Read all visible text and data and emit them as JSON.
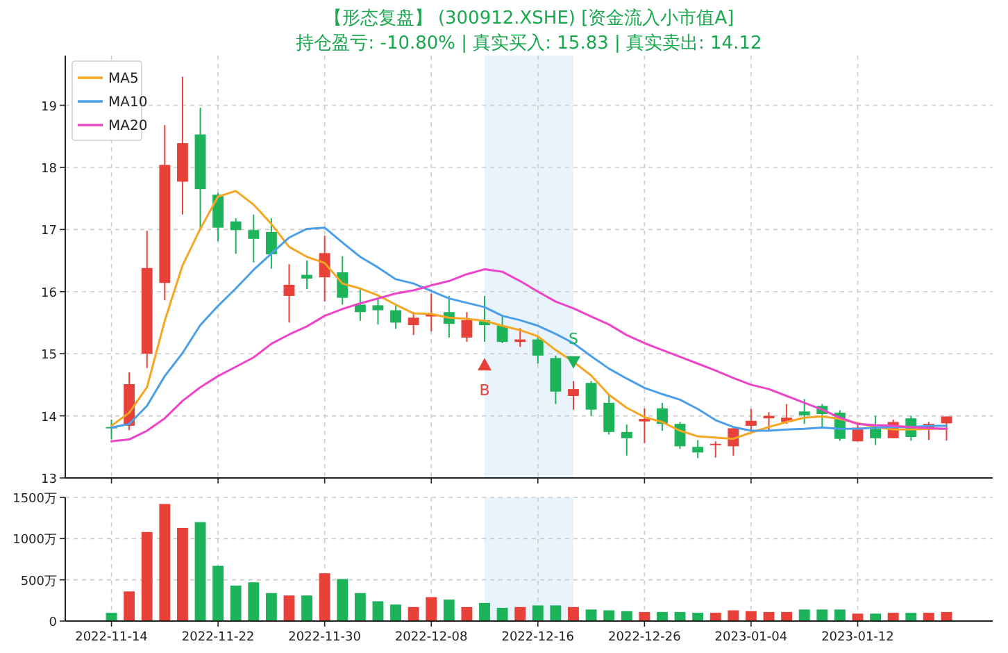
{
  "chart_data": [
    {
      "type": "candlestick",
      "title": "【形态复盘】 (300912.XSHE) [资金流入小市值A]",
      "subtitle": "持仓盈亏: -10.80% | 真实买入: 15.83 | 真实卖出: 14.12",
      "categories": [
        null,
        null,
        null,
        null,
        null,
        null,
        null,
        null,
        null,
        null,
        null,
        null,
        null,
        null,
        null,
        null,
        null,
        null,
        null,
        null,
        null,
        null,
        null,
        null,
        null,
        null,
        null,
        null,
        null,
        null,
        null,
        null,
        null,
        null,
        null,
        null,
        null,
        null,
        null,
        null,
        null,
        null,
        null,
        null,
        null,
        null,
        null,
        null
      ],
      "ohlc": [
        [
          13.82,
          13.94,
          13.62,
          13.8
        ],
        [
          13.84,
          14.7,
          13.77,
          14.51
        ],
        [
          15.0,
          16.98,
          14.77,
          16.38
        ],
        [
          16.14,
          18.68,
          15.86,
          18.04
        ],
        [
          17.77,
          19.46,
          17.24,
          18.39
        ],
        [
          18.53,
          18.96,
          17.01,
          17.65
        ],
        [
          17.56,
          17.59,
          16.81,
          17.03
        ],
        [
          17.13,
          17.18,
          16.61,
          16.99
        ],
        [
          16.99,
          17.24,
          16.47,
          16.85
        ],
        [
          16.96,
          17.18,
          16.37,
          16.6
        ],
        [
          15.93,
          16.44,
          15.5,
          16.11
        ],
        [
          16.27,
          16.5,
          16.04,
          16.21
        ],
        [
          16.23,
          16.9,
          15.84,
          16.62
        ],
        [
          16.31,
          16.57,
          15.79,
          15.9
        ],
        [
          15.79,
          16.05,
          15.53,
          15.67
        ],
        [
          15.78,
          15.9,
          15.47,
          15.7
        ],
        [
          15.7,
          15.79,
          15.4,
          15.5
        ],
        [
          15.46,
          15.67,
          15.3,
          15.58
        ],
        [
          15.6,
          15.97,
          15.36,
          15.64
        ],
        [
          15.67,
          15.93,
          15.26,
          15.48
        ],
        [
          15.26,
          15.67,
          15.19,
          15.54
        ],
        [
          15.54,
          15.93,
          15.19,
          15.46
        ],
        [
          15.45,
          15.6,
          15.17,
          15.19
        ],
        [
          15.19,
          15.41,
          15.11,
          15.23
        ],
        [
          15.23,
          15.28,
          14.84,
          14.97
        ],
        [
          14.93,
          14.97,
          14.19,
          14.39
        ],
        [
          14.32,
          14.56,
          14.1,
          14.43
        ],
        [
          14.53,
          14.56,
          14.0,
          14.1
        ],
        [
          14.21,
          14.34,
          13.7,
          13.74
        ],
        [
          13.74,
          13.86,
          13.36,
          13.64
        ],
        [
          13.91,
          14.12,
          13.56,
          13.95
        ],
        [
          14.12,
          14.21,
          13.76,
          13.87
        ],
        [
          13.87,
          13.9,
          13.47,
          13.51
        ],
        [
          13.5,
          13.61,
          13.32,
          13.41
        ],
        [
          13.53,
          13.59,
          13.33,
          13.55
        ],
        [
          13.51,
          13.8,
          13.36,
          13.8
        ],
        [
          13.84,
          14.11,
          13.76,
          13.92
        ],
        [
          13.96,
          14.06,
          13.76,
          14.0
        ],
        [
          13.9,
          14.19,
          13.87,
          13.97
        ],
        [
          14.07,
          14.27,
          13.87,
          14.01
        ],
        [
          14.16,
          14.19,
          13.81,
          14.03
        ],
        [
          14.05,
          14.09,
          13.6,
          13.63
        ],
        [
          13.59,
          13.9,
          13.59,
          13.81
        ],
        [
          13.79,
          14.0,
          13.53,
          13.64
        ],
        [
          13.64,
          13.94,
          13.64,
          13.9
        ],
        [
          13.96,
          14.0,
          13.6,
          13.66
        ],
        [
          13.79,
          13.9,
          13.61,
          13.87
        ],
        [
          13.88,
          13.99,
          13.6,
          13.99
        ]
      ],
      "colors": [
        "#1db35a",
        "#e8413a",
        "#e8413a",
        "#e8413a",
        "#e8413a",
        "#1db35a",
        "#1db35a",
        "#1db35a",
        "#1db35a",
        "#1db35a",
        "#e8413a",
        "#1db35a",
        "#e8413a",
        "#1db35a",
        "#1db35a",
        "#1db35a",
        "#1db35a",
        "#e8413a",
        "#e8413a",
        "#1db35a",
        "#e8413a",
        "#1db35a",
        "#1db35a",
        "#e8413a",
        "#1db35a",
        "#1db35a",
        "#e8413a",
        "#1db35a",
        "#1db35a",
        "#1db35a",
        "#e8413a",
        "#1db35a",
        "#1db35a",
        "#1db35a",
        "#e8413a",
        "#e8413a",
        "#e8413a",
        "#e8413a",
        "#e8413a",
        "#1db35a",
        "#1db35a",
        "#1db35a",
        "#e8413a",
        "#1db35a",
        "#e8413a",
        "#1db35a",
        "#e8413a",
        "#e8413a"
      ],
      "series": [
        {
          "type": "line",
          "name": "MA5",
          "color": "#f5a623",
          "values": [
            13.84,
            14.05,
            14.46,
            15.53,
            16.42,
            17.01,
            17.53,
            17.62,
            17.4,
            17.09,
            16.72,
            16.56,
            16.46,
            16.13,
            16.05,
            15.94,
            15.79,
            15.65,
            15.64,
            15.58,
            15.56,
            15.53,
            15.45,
            15.38,
            15.28,
            15.06,
            14.87,
            14.65,
            14.34,
            14.13,
            13.98,
            13.9,
            13.76,
            13.67,
            13.65,
            13.63,
            13.73,
            13.82,
            13.9,
            13.97,
            13.99,
            13.95,
            13.88,
            13.82,
            13.78,
            13.78,
            13.79,
            13.79
          ]
        },
        {
          "type": "line",
          "name": "MA10",
          "color": "#4a9fe8",
          "values": [
            13.81,
            13.87,
            14.16,
            14.64,
            15.01,
            15.46,
            15.77,
            16.05,
            16.35,
            16.61,
            16.87,
            17.01,
            17.03,
            16.79,
            16.56,
            16.39,
            16.2,
            16.13,
            16.01,
            15.89,
            15.82,
            15.75,
            15.61,
            15.54,
            15.45,
            15.32,
            15.17,
            14.96,
            14.76,
            14.6,
            14.45,
            14.35,
            14.26,
            14.11,
            13.93,
            13.82,
            13.76,
            13.76,
            13.78,
            13.79,
            13.81,
            13.79,
            13.79,
            13.81,
            13.82,
            13.82,
            13.84,
            13.84
          ]
        },
        {
          "type": "line",
          "name": "MA20",
          "color": "#ee44c8",
          "values": [
            13.59,
            13.62,
            13.76,
            13.96,
            14.24,
            14.46,
            14.64,
            14.79,
            14.94,
            15.16,
            15.31,
            15.44,
            15.61,
            15.72,
            15.81,
            15.89,
            15.97,
            16.02,
            16.1,
            16.17,
            16.28,
            16.36,
            16.32,
            16.17,
            16.0,
            15.84,
            15.73,
            15.6,
            15.47,
            15.3,
            15.17,
            15.06,
            14.95,
            14.84,
            14.73,
            14.61,
            14.5,
            14.43,
            14.32,
            14.21,
            14.1,
            13.97,
            13.87,
            13.85,
            13.84,
            13.82,
            13.8,
            13.79
          ]
        },
        {
          "type": "scatter",
          "marker": "triangle",
          "color": "#e8413a",
          "values": [
            null,
            null,
            null,
            null,
            null,
            null,
            null,
            null,
            null,
            null,
            null,
            null,
            null,
            null,
            null,
            null,
            null,
            null,
            null,
            null,
            null,
            14.82,
            null,
            null,
            null,
            null,
            null,
            null,
            null,
            null,
            null,
            null,
            null,
            null,
            null,
            null,
            null,
            null,
            null,
            null,
            null,
            null,
            null,
            null,
            null,
            null,
            null,
            null
          ]
        },
        {
          "type": "scatter",
          "marker": "triangle-down",
          "color": "#1db35a",
          "values": [
            null,
            null,
            null,
            null,
            null,
            null,
            null,
            null,
            null,
            null,
            null,
            null,
            null,
            null,
            null,
            null,
            null,
            null,
            null,
            null,
            null,
            null,
            null,
            null,
            null,
            null,
            14.87,
            null,
            null,
            null,
            null,
            null,
            null,
            null,
            null,
            null,
            null,
            null,
            null,
            null,
            null,
            null,
            null,
            null,
            null,
            null,
            null,
            null
          ]
        }
      ],
      "annotations": [
        "B",
        "S"
      ],
      "ylim": [
        13,
        19.8
      ],
      "yticks": [
        13,
        14,
        15,
        16,
        17,
        18,
        19
      ],
      "grid": true,
      "legend": "top left",
      "tick_labels": "y"
    },
    {
      "type": "bar",
      "categories": [
        "2022-11-14",
        null,
        null,
        null,
        null,
        null,
        "2022-11-22",
        null,
        null,
        null,
        null,
        null,
        "2022-11-30",
        null,
        null,
        null,
        null,
        null,
        "2022-12-08",
        null,
        null,
        null,
        null,
        null,
        "2022-12-16",
        null,
        null,
        null,
        null,
        null,
        "2022-12-26",
        null,
        null,
        null,
        null,
        null,
        "2023-01-04",
        null,
        null,
        null,
        null,
        null,
        "2023-01-12",
        null,
        null,
        null,
        null,
        null
      ],
      "values": [
        100,
        360,
        1080,
        1420,
        1130,
        1200,
        670,
        430,
        470,
        340,
        310,
        310,
        580,
        510,
        340,
        240,
        200,
        170,
        290,
        260,
        170,
        220,
        160,
        170,
        190,
        190,
        170,
        140,
        130,
        120,
        110,
        110,
        110,
        100,
        100,
        130,
        120,
        110,
        110,
        140,
        140,
        140,
        90,
        90,
        100,
        100,
        100,
        110
      ],
      "colors": [
        "#1db35a",
        "#e8413a",
        "#e8413a",
        "#e8413a",
        "#e8413a",
        "#1db35a",
        "#1db35a",
        "#1db35a",
        "#1db35a",
        "#1db35a",
        "#e8413a",
        "#1db35a",
        "#e8413a",
        "#1db35a",
        "#1db35a",
        "#1db35a",
        "#1db35a",
        "#e8413a",
        "#e8413a",
        "#1db35a",
        "#e8413a",
        "#1db35a",
        "#1db35a",
        "#e8413a",
        "#1db35a",
        "#1db35a",
        "#e8413a",
        "#1db35a",
        "#1db35a",
        "#1db35a",
        "#e8413a",
        "#1db35a",
        "#1db35a",
        "#1db35a",
        "#e8413a",
        "#e8413a",
        "#e8413a",
        "#e8413a",
        "#e8413a",
        "#1db35a",
        "#1db35a",
        "#1db35a",
        "#e8413a",
        "#1db35a",
        "#e8413a",
        "#1db35a",
        "#e8413a",
        "#e8413a"
      ],
      "ylim": [
        0,
        1500
      ],
      "yticks": [
        0,
        {
          "value": 500,
          "label": "500万"
        },
        {
          "value": 1000,
          "label": "1000万"
        },
        {
          "value": 1500,
          "label": "1500万"
        }
      ],
      "grid": true
    }
  ]
}
